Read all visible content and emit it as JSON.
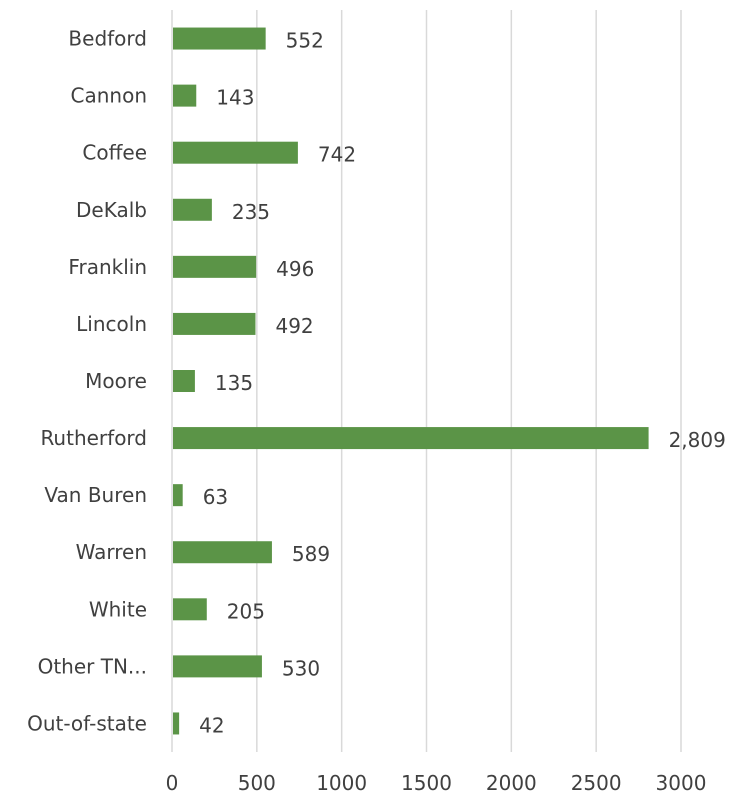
{
  "chart_data": {
    "type": "bar",
    "orientation": "horizontal",
    "categories": [
      "Bedford",
      "Cannon",
      "Coffee",
      "DeKalb",
      "Franklin",
      "Lincoln",
      "Moore",
      "Rutherford",
      "Van Buren",
      "Warren",
      "White",
      "Other TN...",
      "Out-of-state"
    ],
    "values": [
      552,
      143,
      742,
      235,
      496,
      492,
      135,
      2809,
      63,
      589,
      205,
      530,
      42
    ],
    "value_labels": [
      "552",
      "143",
      "742",
      "235",
      "496",
      "492",
      "135",
      "2,809",
      "63",
      "589",
      "205",
      "530",
      "42"
    ],
    "xlim": [
      0,
      3000
    ],
    "xticks": [
      0,
      500,
      1000,
      1500,
      2000,
      2500,
      3000
    ],
    "xtick_labels": [
      "0",
      "500",
      "1000",
      "1500",
      "2000",
      "2500",
      "3000"
    ],
    "grid": true,
    "legend": "none",
    "bar_color": "#5b9447",
    "title": "",
    "xlabel": "",
    "ylabel": ""
  }
}
